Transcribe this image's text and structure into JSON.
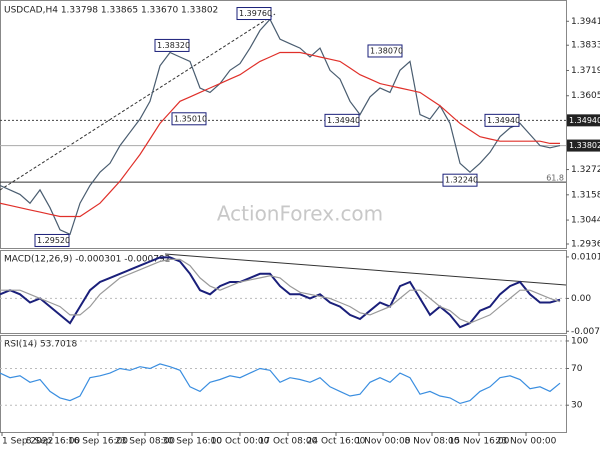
{
  "chart_data": [
    {
      "type": "line",
      "title": "USDCAD,H4  1.33798 1.33865 1.33670 1.33802",
      "series": [
        {
          "name": "USDCAD",
          "color": "#4a5d70",
          "values": [
            1.32,
            1.318,
            1.316,
            1.312,
            1.318,
            1.31,
            1.3,
            1.298,
            1.312,
            1.32,
            1.326,
            1.33,
            1.338,
            1.344,
            1.35,
            1.358,
            1.374,
            1.38,
            1.378,
            1.376,
            1.364,
            1.362,
            1.366,
            1.372,
            1.375,
            1.382,
            1.39,
            1.395,
            1.386,
            1.384,
            1.382,
            1.378,
            1.382,
            1.372,
            1.368,
            1.358,
            1.352,
            1.36,
            1.364,
            1.362,
            1.372,
            1.376,
            1.352,
            1.35,
            1.356,
            1.348,
            1.33,
            1.326,
            1.33,
            1.335,
            1.342,
            1.346,
            1.348,
            1.343,
            1.338,
            1.337,
            1.338
          ]
        },
        {
          "name": "MA",
          "color": "#e0302a",
          "values": [
            1.312,
            1.311,
            1.31,
            1.309,
            1.308,
            1.307,
            1.306,
            1.306,
            1.306,
            1.309,
            1.312,
            1.317,
            1.322,
            1.328,
            1.334,
            1.341,
            1.348,
            1.353,
            1.358,
            1.36,
            1.362,
            1.364,
            1.366,
            1.368,
            1.37,
            1.373,
            1.376,
            1.378,
            1.38,
            1.38,
            1.38,
            1.379,
            1.378,
            1.377,
            1.376,
            1.373,
            1.37,
            1.368,
            1.366,
            1.365,
            1.364,
            1.363,
            1.362,
            1.359,
            1.356,
            1.352,
            1.348,
            1.345,
            1.342,
            1.341,
            1.34,
            1.34,
            1.34,
            1.34,
            1.34,
            1.339,
            1.339
          ]
        }
      ],
      "xlim": [
        0,
        56.6
      ],
      "ylim": [
        1.2918,
        1.4028
      ],
      "yticks": [
        {
          "value": 1.3941,
          "label": "1.39410"
        },
        {
          "value": 1.3833,
          "label": "1.38330"
        },
        {
          "value": 1.3719,
          "label": "1.37190"
        },
        {
          "value": 1.3605,
          "label": "1.36050"
        },
        {
          "value": 1.3272,
          "label": "1.32720"
        },
        {
          "value": 1.3158,
          "label": "1.31580"
        },
        {
          "value": 1.3044,
          "label": "1.30440"
        },
        {
          "value": 1.2936,
          "label": "1.29360"
        }
      ],
      "price_lines": [
        {
          "value": 1.3494,
          "label": "1.34940"
        },
        {
          "value": 1.33802,
          "label": "1.33802"
        }
      ],
      "level": {
        "value": 1.3215,
        "label": "61.8"
      },
      "annotations": [
        {
          "value": 1.3976,
          "label": "1.39760",
          "x": 23.7
        },
        {
          "value": 1.3832,
          "label": "1.38320",
          "x": 15.5
        },
        {
          "value": 1.3807,
          "label": "1.38070",
          "x": 36.8
        },
        {
          "value": 1.3501,
          "label": "1.35010",
          "x": 17.2
        },
        {
          "value": 1.3494,
          "label": "1.34940",
          "x": 32.5
        },
        {
          "value": 1.3494,
          "label": "1.34940",
          "x": 48.5
        },
        {
          "value": 1.3224,
          "label": "1.32240",
          "x": 44.3
        },
        {
          "value": 1.2952,
          "label": "1.29520",
          "x": 3.5
        }
      ],
      "watermark": "ActionForex.com"
    },
    {
      "type": "line",
      "title": "MACD(12,26,9) -0.000301 -0.000792",
      "series": [
        {
          "name": "MACD",
          "color": "#1a1f7a",
          "values": [
            0.001,
            0.002,
            0.001,
            -0.001,
            0,
            -0.002,
            -0.004,
            -0.006,
            -0.002,
            0.002,
            0.004,
            0.005,
            0.006,
            0.007,
            0.008,
            0.009,
            0.01,
            0.01,
            0.009,
            0.006,
            0.002,
            0.001,
            0.003,
            0.004,
            0.004,
            0.005,
            0.006,
            0.006,
            0.003,
            0.001,
            0.001,
            0,
            0.001,
            -0.001,
            -0.002,
            -0.004,
            -0.005,
            -0.003,
            -0.001,
            -0.002,
            0.003,
            0.004,
            0,
            -0.004,
            -0.002,
            -0.004,
            -0.007,
            -0.006,
            -0.003,
            -0.002,
            0.001,
            0.003,
            0.004,
            0.001,
            -0.001,
            -0.001,
            -0.0003
          ]
        },
        {
          "name": "Signal",
          "color": "#9a9a9a",
          "values": [
            0.002,
            0.002,
            0.002,
            0.001,
            0,
            -0.001,
            -0.002,
            -0.004,
            -0.004,
            -0.002,
            0.001,
            0.003,
            0.005,
            0.006,
            0.007,
            0.008,
            0.009,
            0.0095,
            0.0095,
            0.008,
            0.005,
            0.003,
            0.002,
            0.003,
            0.004,
            0.0045,
            0.005,
            0.0055,
            0.005,
            0.003,
            0.0015,
            0.001,
            0.0005,
            0,
            -0.001,
            -0.002,
            -0.0035,
            -0.004,
            -0.003,
            -0.002,
            0,
            0.002,
            0.002,
            0,
            -0.002,
            -0.003,
            -0.005,
            -0.006,
            -0.005,
            -0.004,
            -0.002,
            0,
            0.002,
            0.002,
            0.001,
            0,
            -0.0008
          ]
        }
      ],
      "xlim": [
        0,
        56.6
      ],
      "ylim": [
        -0.00842,
        0.01155
      ],
      "yticks": [
        0.010103,
        {
          "value": 0,
          "label": "0.00"
        },
        -0.007998
      ]
    },
    {
      "type": "line",
      "title": "RSI(14) 53.7018",
      "series": [
        {
          "name": "RSI",
          "color": "#3a8ee0",
          "values": [
            65,
            60,
            62,
            55,
            58,
            45,
            38,
            35,
            40,
            60,
            62,
            65,
            70,
            68,
            72,
            70,
            75,
            72,
            68,
            50,
            45,
            55,
            58,
            62,
            60,
            65,
            70,
            68,
            55,
            60,
            58,
            55,
            60,
            50,
            45,
            40,
            42,
            55,
            60,
            55,
            65,
            60,
            42,
            45,
            40,
            38,
            32,
            35,
            45,
            50,
            60,
            62,
            58,
            48,
            50,
            45,
            54
          ]
        }
      ],
      "xlim": [
        0,
        56.6
      ],
      "ylim": [
        0.8,
        105.4
      ],
      "yticks": [
        100,
        70,
        30
      ],
      "xticks": [
        {
          "value": 0.2,
          "label": "1 Sep 2022"
        },
        {
          "value": 5.3,
          "label": "8 Sep 16:00"
        },
        {
          "value": 9.8,
          "label": "16 Sep 16:00"
        },
        {
          "value": 14.5,
          "label": "23 Sep 08:00"
        },
        {
          "value": 19.2,
          "label": "30 Sep 16:00"
        },
        {
          "value": 24,
          "label": "10 Oct 00:00"
        },
        {
          "value": 28.8,
          "label": "17 Oct 08:00"
        },
        {
          "value": 33.6,
          "label": "24 Oct 16:00"
        },
        {
          "value": 38.3,
          "label": "1 Nov 00:00"
        },
        {
          "value": 43.2,
          "label": "8 Nov 08:00"
        },
        {
          "value": 47.9,
          "label": "15 Nov 16:00"
        },
        {
          "value": 52.6,
          "label": "23 Nov 00:00"
        }
      ]
    }
  ]
}
